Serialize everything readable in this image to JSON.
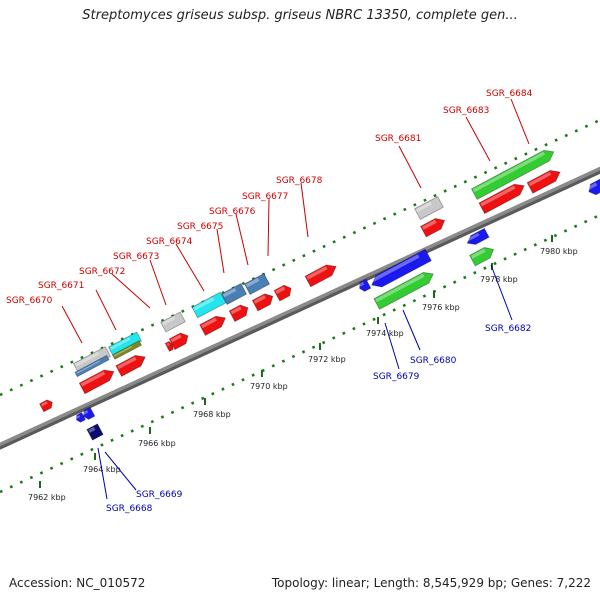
{
  "title": "Streptomyces griseus subsp. griseus NBRC 13350, complete gen...",
  "footer": {
    "accession": "Accession: NC_010572",
    "summary": "Topology: linear; Length: 8,545,929 bp; Genes: 7,222"
  },
  "colors": {
    "backbone": "#8a8a8a",
    "label_top": "#cc0000",
    "label_bottom": "#0000aa",
    "red": "#ee1111",
    "green": "#33cc33",
    "blue": "#1a1aee",
    "navy": "#0b0b6e",
    "cyan": "#22e6ee",
    "steel": "#4a7fb5",
    "gray": "#c8c8c8",
    "olive": "#7b8a22"
  },
  "ticks": [
    "7962 kbp",
    "7964 kbp",
    "7966 kbp",
    "7968 kbp",
    "7970 kbp",
    "7972 kbp",
    "7974 kbp",
    "7976 kbp",
    "7978 kbp",
    "7980 kbp"
  ],
  "genes_top": [
    "SGR_6670",
    "SGR_6671",
    "SGR_6672",
    "SGR_6673",
    "SGR_6674",
    "SGR_6675",
    "SGR_6676",
    "SGR_6677",
    "SGR_6678",
    "SGR_6681",
    "SGR_6683",
    "SGR_6684"
  ],
  "genes_bottom": [
    "SGR_6668",
    "SGR_6669",
    "SGR_6679",
    "SGR_6680",
    "SGR_6682"
  ]
}
